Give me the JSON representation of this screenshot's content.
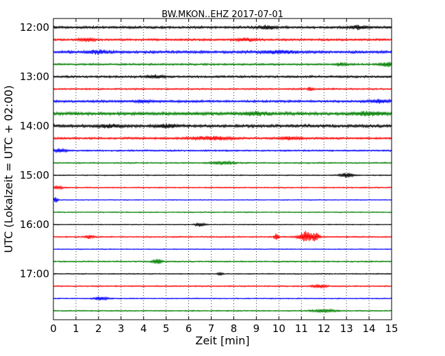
{
  "chart_data": {
    "type": "line",
    "title": "BW.MKON..EHZ 2017-07-01",
    "xlabel": "Zeit  [min]",
    "ylabel": "UTC (Lokalzeit = UTC + 02:00)",
    "xlim": [
      0,
      15
    ],
    "x_ticks": [
      "0",
      "1",
      "2",
      "3",
      "4",
      "5",
      "6",
      "7",
      "8",
      "9",
      "10",
      "11",
      "12",
      "13",
      "14",
      "15"
    ],
    "y_ticks": [
      "12:00",
      "13:00",
      "14:00",
      "15:00",
      "16:00",
      "17:00"
    ],
    "grid": "x-dotted",
    "trace_colors": [
      "#000000",
      "#ff0000",
      "#0000ff",
      "#008000"
    ],
    "traces": [
      {
        "start": "12:00",
        "amp": 0.9,
        "events": [
          {
            "t": 9.5,
            "a": 1.6,
            "w": 0.3
          },
          {
            "t": 13.5,
            "a": 1.4,
            "w": 0.4
          }
        ]
      },
      {
        "start": "12:15",
        "amp": 0.8,
        "events": [
          {
            "t": 1.5,
            "a": 1.4,
            "w": 0.3
          },
          {
            "t": 8.5,
            "a": 1.3,
            "w": 0.4
          }
        ]
      },
      {
        "start": "12:30",
        "amp": 1.0,
        "events": [
          {
            "t": 2.0,
            "a": 1.5,
            "w": 0.4
          },
          {
            "t": 10.0,
            "a": 1.3,
            "w": 0.6
          }
        ]
      },
      {
        "start": "12:45",
        "amp": 0.7,
        "events": [
          {
            "t": 14.8,
            "a": 1.8,
            "w": 0.3
          },
          {
            "t": 12.8,
            "a": 1.2,
            "w": 0.3
          }
        ]
      },
      {
        "start": "13:00",
        "amp": 0.8,
        "events": [
          {
            "t": 4.5,
            "a": 1.3,
            "w": 0.4
          }
        ]
      },
      {
        "start": "13:15",
        "amp": 0.6,
        "events": [
          {
            "t": 11.4,
            "a": 2.0,
            "w": 0.1
          }
        ]
      },
      {
        "start": "13:30",
        "amp": 0.9,
        "events": [
          {
            "t": 4.0,
            "a": 1.3,
            "w": 0.3
          },
          {
            "t": 14.5,
            "a": 1.4,
            "w": 0.4
          }
        ]
      },
      {
        "start": "13:45",
        "amp": 1.2,
        "events": [
          {
            "t": 9.0,
            "a": 1.3,
            "w": 0.5
          },
          {
            "t": 14.0,
            "a": 1.4,
            "w": 0.6
          }
        ]
      },
      {
        "start": "14:00",
        "amp": 1.1,
        "events": [
          {
            "t": 5.0,
            "a": 1.3,
            "w": 0.5
          },
          {
            "t": 2.5,
            "a": 1.2,
            "w": 0.4
          }
        ]
      },
      {
        "start": "14:15",
        "amp": 0.8,
        "events": [
          {
            "t": 7.0,
            "a": 1.4,
            "w": 0.9
          },
          {
            "t": 10.5,
            "a": 1.2,
            "w": 0.4
          }
        ]
      },
      {
        "start": "14:30",
        "amp": 0.6,
        "events": [
          {
            "t": 0.3,
            "a": 1.6,
            "w": 0.3
          }
        ]
      },
      {
        "start": "14:45",
        "amp": 0.5,
        "events": [
          {
            "t": 7.5,
            "a": 1.3,
            "w": 0.5
          }
        ]
      },
      {
        "start": "15:00",
        "amp": 0.4,
        "events": [
          {
            "t": 13.0,
            "a": 2.0,
            "w": 0.3
          }
        ]
      },
      {
        "start": "15:15",
        "amp": 0.45,
        "events": [
          {
            "t": 0.2,
            "a": 1.5,
            "w": 0.2
          }
        ]
      },
      {
        "start": "15:30",
        "amp": 0.35,
        "events": [
          {
            "t": 0.1,
            "a": 2.5,
            "w": 0.1
          }
        ]
      },
      {
        "start": "15:45",
        "amp": 0.4,
        "events": []
      },
      {
        "start": "16:00",
        "amp": 0.35,
        "events": [
          {
            "t": 6.5,
            "a": 1.8,
            "w": 0.2
          }
        ]
      },
      {
        "start": "16:15",
        "amp": 0.5,
        "events": [
          {
            "t": 9.9,
            "a": 3.0,
            "w": 0.1
          },
          {
            "t": 11.2,
            "a": 5.0,
            "w": 0.3
          },
          {
            "t": 11.65,
            "a": 3.5,
            "w": 0.15
          },
          {
            "t": 1.6,
            "a": 1.6,
            "w": 0.2
          }
        ]
      },
      {
        "start": "16:30",
        "amp": 0.35,
        "events": []
      },
      {
        "start": "16:45",
        "amp": 0.5,
        "events": [
          {
            "t": 4.6,
            "a": 2.5,
            "w": 0.2
          }
        ]
      },
      {
        "start": "17:00",
        "amp": 0.4,
        "events": [
          {
            "t": 7.4,
            "a": 2.0,
            "w": 0.1
          }
        ]
      },
      {
        "start": "17:15",
        "amp": 0.5,
        "events": [
          {
            "t": 11.8,
            "a": 1.5,
            "w": 0.3
          }
        ]
      },
      {
        "start": "17:30",
        "amp": 0.4,
        "events": [
          {
            "t": 2.1,
            "a": 1.6,
            "w": 0.3
          }
        ]
      },
      {
        "start": "17:45",
        "amp": 0.45,
        "events": [
          {
            "t": 12.0,
            "a": 1.3,
            "w": 0.5
          }
        ]
      }
    ]
  }
}
